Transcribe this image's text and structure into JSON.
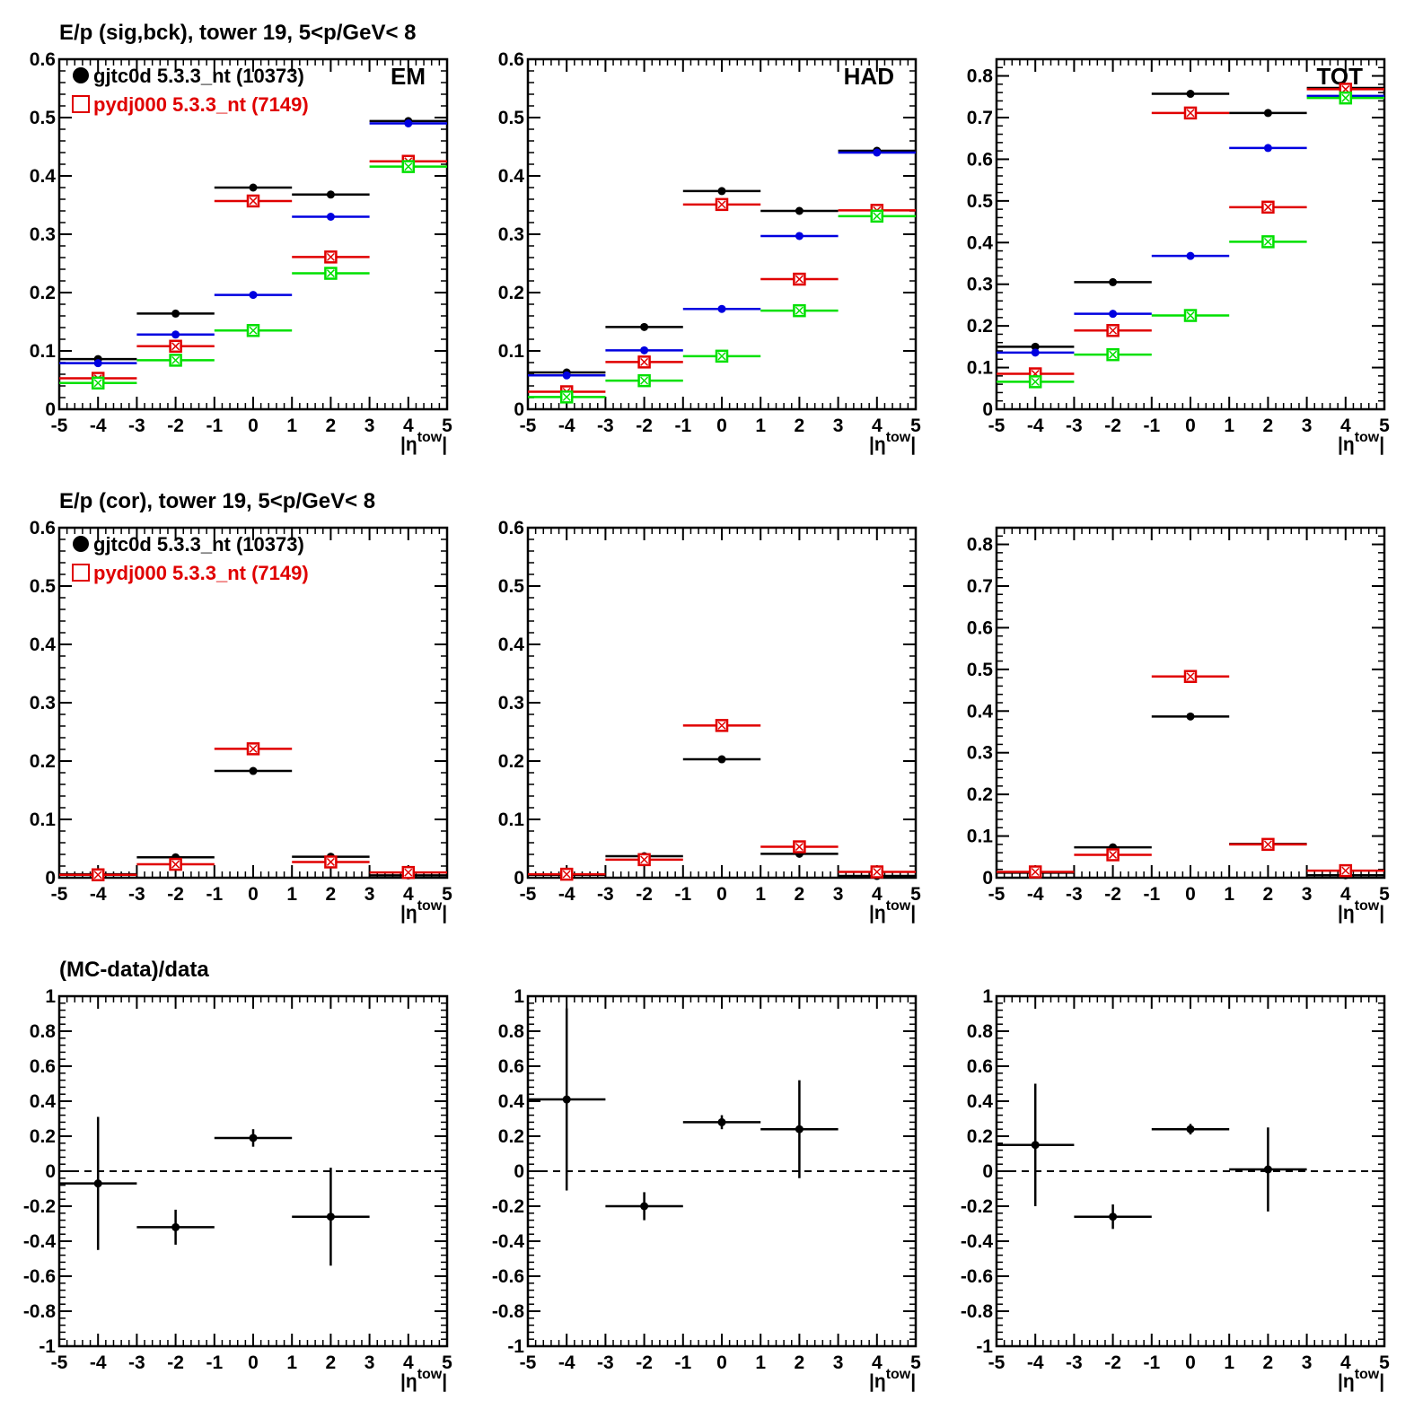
{
  "rows": [
    {
      "title": "E/p (sig,bck), tower 19,  5<p/GeV< 8"
    },
    {
      "title": "E/p (cor), tower 19,  5<p/GeV< 8"
    },
    {
      "title": "(MC-data)/data"
    }
  ],
  "legend": {
    "entries": [
      {
        "label": "gjtc0d 5.3.3_nt (10373)",
        "color": "#000000",
        "marker": "filled-circle"
      },
      {
        "label": "pydj000 5.3.3_nt (7149)",
        "color": "#e00000",
        "marker": "open-square"
      }
    ]
  },
  "colors": {
    "black": "#000000",
    "red": "#e00000",
    "blue": "#0000e0",
    "green": "#00e000"
  },
  "chart_data": [
    {
      "id": "sig-bck-em",
      "type": "scatter",
      "panel_label": "EM",
      "xlabel": "|η^tow|",
      "xlim": [
        -5,
        5
      ],
      "ylim": [
        0,
        0.6
      ],
      "xticks": [
        -5,
        -4,
        -3,
        -2,
        -1,
        0,
        1,
        2,
        3,
        4,
        5
      ],
      "yticks": [
        0,
        0.1,
        0.2,
        0.3,
        0.4,
        0.5,
        0.6
      ],
      "x": [
        -4,
        -2,
        0,
        2,
        4
      ],
      "bin_halfwidth": 1,
      "series": [
        {
          "color": "black",
          "marker": "dot",
          "values": [
            0.086,
            0.164,
            0.38,
            0.368,
            0.494
          ]
        },
        {
          "color": "blue",
          "marker": "dot",
          "values": [
            0.079,
            0.128,
            0.196,
            0.33,
            0.49
          ]
        },
        {
          "color": "red",
          "marker": "square",
          "values": [
            0.053,
            0.108,
            0.357,
            0.261,
            0.425
          ]
        },
        {
          "color": "green",
          "marker": "square",
          "values": [
            0.045,
            0.084,
            0.135,
            0.233,
            0.416
          ]
        }
      ]
    },
    {
      "id": "sig-bck-had",
      "type": "scatter",
      "panel_label": "HAD",
      "xlabel": "|η^tow|",
      "xlim": [
        -5,
        5
      ],
      "ylim": [
        0,
        0.6
      ],
      "xticks": [
        -5,
        -4,
        -3,
        -2,
        -1,
        0,
        1,
        2,
        3,
        4,
        5
      ],
      "yticks": [
        0,
        0.1,
        0.2,
        0.3,
        0.4,
        0.5,
        0.6
      ],
      "x": [
        -4,
        -2,
        0,
        2,
        4
      ],
      "bin_halfwidth": 1,
      "series": [
        {
          "color": "black",
          "marker": "dot",
          "values": [
            0.063,
            0.141,
            0.374,
            0.34,
            0.443
          ]
        },
        {
          "color": "blue",
          "marker": "dot",
          "values": [
            0.058,
            0.101,
            0.172,
            0.297,
            0.44
          ]
        },
        {
          "color": "red",
          "marker": "square",
          "values": [
            0.03,
            0.081,
            0.351,
            0.223,
            0.341
          ]
        },
        {
          "color": "green",
          "marker": "square",
          "values": [
            0.021,
            0.049,
            0.091,
            0.169,
            0.331
          ]
        }
      ]
    },
    {
      "id": "sig-bck-tot",
      "type": "scatter",
      "panel_label": "TOT",
      "xlabel": "|η^tow|",
      "xlim": [
        -5,
        5
      ],
      "ylim": [
        0,
        0.84
      ],
      "xticks": [
        -5,
        -4,
        -3,
        -2,
        -1,
        0,
        1,
        2,
        3,
        4,
        5
      ],
      "yticks": [
        0,
        0.1,
        0.2,
        0.3,
        0.4,
        0.5,
        0.6,
        0.7,
        0.8
      ],
      "x": [
        -4,
        -2,
        0,
        2,
        4
      ],
      "bin_halfwidth": 1,
      "series": [
        {
          "color": "black",
          "marker": "dot",
          "values": [
            0.15,
            0.305,
            0.757,
            0.711,
            0.771
          ]
        },
        {
          "color": "blue",
          "marker": "dot",
          "values": [
            0.136,
            0.229,
            0.368,
            0.627,
            0.752
          ]
        },
        {
          "color": "red",
          "marker": "square",
          "values": [
            0.085,
            0.189,
            0.711,
            0.485,
            0.768
          ]
        },
        {
          "color": "green",
          "marker": "square",
          "values": [
            0.066,
            0.131,
            0.225,
            0.402,
            0.747
          ]
        }
      ]
    },
    {
      "id": "cor-em",
      "type": "scatter",
      "panel_label": "",
      "xlabel": "|η^tow|",
      "xlim": [
        -5,
        5
      ],
      "ylim": [
        0,
        0.6
      ],
      "xticks": [
        -5,
        -4,
        -3,
        -2,
        -1,
        0,
        1,
        2,
        3,
        4,
        5
      ],
      "yticks": [
        0,
        0.1,
        0.2,
        0.3,
        0.4,
        0.5,
        0.6
      ],
      "x": [
        -4,
        -2,
        0,
        2,
        4
      ],
      "bin_halfwidth": 1,
      "series": [
        {
          "color": "black",
          "marker": "dot",
          "values": [
            0.006,
            0.035,
            0.183,
            0.036,
            0.004
          ]
        },
        {
          "color": "red",
          "marker": "square",
          "values": [
            0.005,
            0.023,
            0.221,
            0.027,
            0.009
          ]
        }
      ]
    },
    {
      "id": "cor-had",
      "type": "scatter",
      "panel_label": "",
      "xlabel": "|η^tow|",
      "xlim": [
        -5,
        5
      ],
      "ylim": [
        0,
        0.6
      ],
      "xticks": [
        -5,
        -4,
        -3,
        -2,
        -1,
        0,
        1,
        2,
        3,
        4,
        5
      ],
      "yticks": [
        0,
        0.1,
        0.2,
        0.3,
        0.4,
        0.5,
        0.6
      ],
      "x": [
        -4,
        -2,
        0,
        2,
        4
      ],
      "bin_halfwidth": 1,
      "series": [
        {
          "color": "black",
          "marker": "dot",
          "values": [
            0.005,
            0.037,
            0.203,
            0.041,
            0.003
          ]
        },
        {
          "color": "red",
          "marker": "square",
          "values": [
            0.006,
            0.031,
            0.261,
            0.053,
            0.01
          ]
        }
      ]
    },
    {
      "id": "cor-tot",
      "type": "scatter",
      "panel_label": "",
      "xlabel": "|η^tow|",
      "xlim": [
        -5,
        5
      ],
      "ylim": [
        0,
        0.84
      ],
      "xticks": [
        -5,
        -4,
        -3,
        -2,
        -1,
        0,
        1,
        2,
        3,
        4,
        5
      ],
      "yticks": [
        0,
        0.1,
        0.2,
        0.3,
        0.4,
        0.5,
        0.6,
        0.7,
        0.8
      ],
      "x": [
        -4,
        -2,
        0,
        2,
        4
      ],
      "bin_halfwidth": 1,
      "series": [
        {
          "color": "black",
          "marker": "dot",
          "values": [
            0.012,
            0.073,
            0.387,
            0.081,
            0.006
          ]
        },
        {
          "color": "red",
          "marker": "square",
          "values": [
            0.014,
            0.055,
            0.483,
            0.08,
            0.017
          ]
        }
      ]
    },
    {
      "id": "ratio-em",
      "type": "scatter",
      "panel_label": "",
      "xlabel": "|η^tow|",
      "xlim": [
        -5,
        5
      ],
      "ylim": [
        -1,
        1
      ],
      "xticks": [
        -5,
        -4,
        -3,
        -2,
        -1,
        0,
        1,
        2,
        3,
        4,
        5
      ],
      "yticks": [
        -1,
        -0.8,
        -0.6,
        -0.4,
        -0.2,
        0,
        0.2,
        0.4,
        0.6,
        0.8,
        1
      ],
      "reference_line": 0,
      "x": [
        -4,
        -2,
        0,
        2
      ],
      "bin_halfwidth": 1,
      "series": [
        {
          "color": "black",
          "marker": "dot",
          "values": [
            -0.07,
            -0.32,
            0.19,
            -0.26
          ],
          "errors": [
            0.38,
            0.1,
            0.05,
            0.28
          ]
        }
      ]
    },
    {
      "id": "ratio-had",
      "type": "scatter",
      "panel_label": "",
      "xlabel": "|η^tow|",
      "xlim": [
        -5,
        5
      ],
      "ylim": [
        -1,
        1
      ],
      "xticks": [
        -5,
        -4,
        -3,
        -2,
        -1,
        0,
        1,
        2,
        3,
        4,
        5
      ],
      "yticks": [
        -1,
        -0.8,
        -0.6,
        -0.4,
        -0.2,
        0,
        0.2,
        0.4,
        0.6,
        0.8,
        1
      ],
      "reference_line": 0,
      "x": [
        -4,
        -2,
        0,
        2
      ],
      "bin_halfwidth": 1,
      "series": [
        {
          "color": "black",
          "marker": "dot",
          "values": [
            0.41,
            -0.2,
            0.28,
            0.24
          ],
          "errors": [
            0.52,
            0.08,
            0.04,
            0.28
          ]
        }
      ]
    },
    {
      "id": "ratio-tot",
      "type": "scatter",
      "panel_label": "",
      "xlabel": "|η^tow|",
      "xlim": [
        -5,
        5
      ],
      "ylim": [
        -1,
        1
      ],
      "xticks": [
        -5,
        -4,
        -3,
        -2,
        -1,
        0,
        1,
        2,
        3,
        4,
        5
      ],
      "yticks": [
        -1,
        -0.8,
        -0.6,
        -0.4,
        -0.2,
        0,
        0.2,
        0.4,
        0.6,
        0.8,
        1
      ],
      "reference_line": 0,
      "x": [
        -4,
        -2,
        0,
        2
      ],
      "bin_halfwidth": 1,
      "series": [
        {
          "color": "black",
          "marker": "dot",
          "values": [
            0.15,
            -0.26,
            0.24,
            0.01
          ],
          "errors": [
            0.35,
            0.07,
            0.03,
            0.24
          ]
        }
      ]
    }
  ]
}
